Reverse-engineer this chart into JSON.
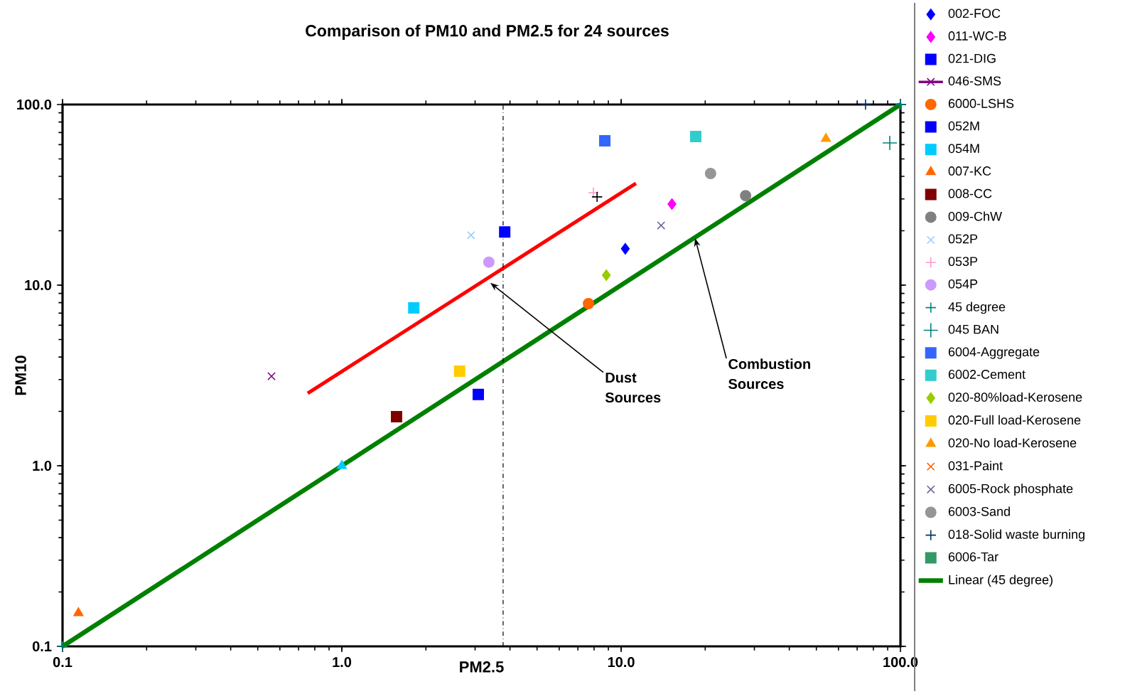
{
  "chart_data": {
    "type": "scatter",
    "title": "Comparison of PM10 and PM2.5 for 24 sources",
    "xlabel": "PM2.5",
    "ylabel": "PM10",
    "log": "xy",
    "grid": false,
    "legend": "right",
    "xlim": [
      0.1,
      100
    ],
    "ylim": [
      0.1,
      100
    ],
    "xticks": [
      {
        "value": 0.1,
        "label": "0.1"
      },
      {
        "value": 1,
        "label": "1.0"
      },
      {
        "value": 10,
        "label": "10.0"
      },
      {
        "value": 100,
        "label": "100.0"
      }
    ],
    "yticks": [
      {
        "value": 0.1,
        "label": "0.1"
      },
      {
        "value": 1,
        "label": "1.0"
      },
      {
        "value": 10,
        "label": "10.0"
      },
      {
        "value": 100,
        "label": "100.0"
      }
    ],
    "ref_lines": [
      {
        "axis": "x",
        "value": 3.78,
        "color": "#000000",
        "line_style": "dashdotted"
      }
    ],
    "annotations": [
      {
        "text": "Dust Sources",
        "x": 3.4,
        "y": 10.3
      },
      {
        "text": "Combustion Sources",
        "x": 18.4,
        "y": 18.2
      }
    ],
    "series": [
      {
        "name": "002-FOC",
        "color": "#0000ff",
        "marker": "diamond",
        "x": [
          10.35
        ],
        "values": [
          15.9
        ]
      },
      {
        "name": "011-WC-B",
        "color": "#ff00ff",
        "marker": "diamond",
        "x": [
          15.2
        ],
        "values": [
          28.1
        ]
      },
      {
        "name": "021-DIG",
        "color": "#0000ff",
        "marker": "square",
        "x": [
          3.08
        ],
        "values": [
          2.48
        ]
      },
      {
        "name": "046-SMS",
        "type": "line",
        "line_style": "solid",
        "color": "#800080",
        "marker": "cross",
        "x": [
          0.56
        ],
        "values": [
          3.13
        ]
      },
      {
        "name": "6000-LSHS",
        "color": "#ff6600",
        "marker": "circle",
        "x": [
          7.64
        ],
        "values": [
          7.9
        ]
      },
      {
        "name": "052M",
        "color": "#0000ff",
        "marker": "square",
        "x": [
          3.83
        ],
        "values": [
          19.7
        ]
      },
      {
        "name": "054M",
        "color": "#00ccff",
        "marker": "square",
        "x": [
          1.81
        ],
        "values": [
          7.48
        ]
      },
      {
        "name": "007-KC",
        "color": "#ff6600",
        "marker": "triangle",
        "x": [
          0.114
        ],
        "values": [
          0.153
        ]
      },
      {
        "name": "008-CC",
        "color": "#800000",
        "marker": "square",
        "x": [
          1.57
        ],
        "values": [
          1.87
        ]
      },
      {
        "name": "009-ChW",
        "color": "#808080",
        "marker": "circle",
        "x": [
          27.9
        ],
        "values": [
          31.3
        ]
      },
      {
        "name": "052P",
        "color": "#99ccff",
        "marker": "cross",
        "x": [
          2.9
        ],
        "values": [
          18.9
        ]
      },
      {
        "name": "053P",
        "color": "#ff99cc",
        "marker": "plus",
        "x": [
          7.96
        ],
        "values": [
          32.5
        ]
      },
      {
        "name": "054P",
        "color": "#cc99ff",
        "marker": "circle",
        "x": [
          3.36
        ],
        "values": [
          13.4
        ]
      },
      {
        "name": "45 degree",
        "color": "#008080",
        "marker": "plus",
        "x": [
          0.1,
          100
        ],
        "values": [
          0.1,
          100
        ]
      },
      {
        "name": "045 BAN",
        "color": "#008080",
        "marker": "plus",
        "x": [
          91.6
        ],
        "values": [
          61.3
        ]
      },
      {
        "name": "6004-Aggregate",
        "color": "#3366ff",
        "marker": "square",
        "x": [
          8.74
        ],
        "values": [
          63
        ]
      },
      {
        "name": "6002-Cement",
        "color": "#33cccc",
        "marker": "square",
        "x": [
          18.5
        ],
        "values": [
          66.5
        ]
      },
      {
        "name": "020-80%load-Kerosene",
        "color": "#99cc00",
        "marker": "diamond",
        "x": [
          8.85
        ],
        "values": [
          11.35
        ]
      },
      {
        "name": "020-Full load-Kerosene",
        "color": "#ffcc00",
        "marker": "square",
        "x": [
          2.64
        ],
        "values": [
          3.34
        ]
      },
      {
        "name": "020-No load-Kerosene",
        "color": "#ff9900",
        "marker": "triangle",
        "x": [
          54.1
        ],
        "values": [
          64.7
        ]
      },
      {
        "name": "031-Paint",
        "color": "#ff6600",
        "marker": "cross"
      },
      {
        "name": "6005-Rock phosphate",
        "color": "#666699",
        "marker": "cross",
        "x": [
          13.9
        ],
        "values": [
          21.4
        ]
      },
      {
        "name": "6003-Sand",
        "color": "#969696",
        "marker": "circle",
        "x": [
          20.9
        ],
        "values": [
          41.5
        ]
      },
      {
        "name": "018-Solid waste burning",
        "color": "#003366",
        "marker": "plus",
        "x": [
          75
        ],
        "values": [
          100
        ]
      },
      {
        "name": "6006-Tar",
        "color": "#339966",
        "marker": "square"
      },
      {
        "name": "Linear (45 degree)",
        "type": "line",
        "line_style": "solid",
        "color": "#008000",
        "marker": "none",
        "x": [
          0.1,
          100
        ],
        "values": [
          0.1,
          100
        ]
      },
      {
        "color": "#ff0000",
        "type": "line",
        "line_style": "solid",
        "marker": "none",
        "x": [
          0.755,
          11.3
        ],
        "values": [
          2.52,
          36.6
        ]
      },
      {
        "color": "#000000",
        "marker": "plus",
        "x": [
          8.2
        ],
        "values": [
          30.8
        ]
      },
      {
        "color": "#00ccff",
        "marker": "triangle",
        "x": [
          1.0
        ],
        "values": [
          1.0
        ]
      }
    ]
  }
}
